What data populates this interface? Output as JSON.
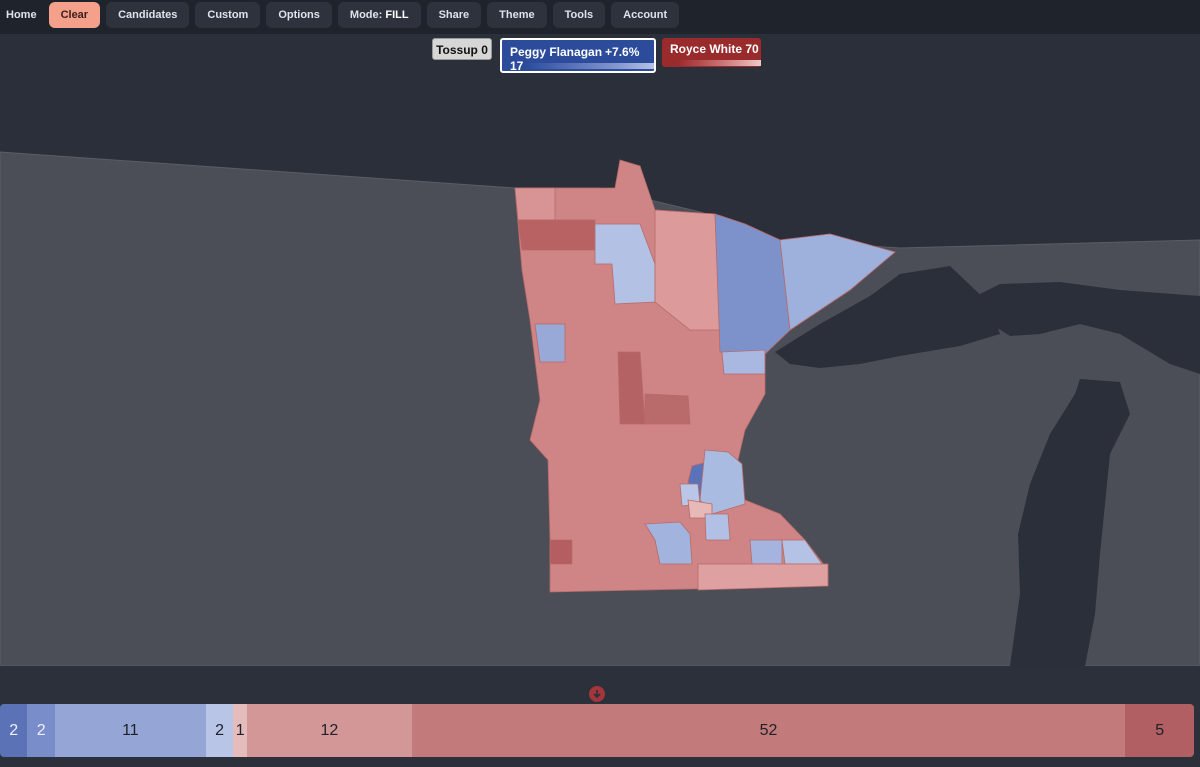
{
  "nav": [
    "Home",
    "Clear",
    "Candidates",
    "Custom",
    "Options",
    "Share",
    "Theme",
    "Tools",
    "Account"
  ],
  "mode": {
    "label": "Mode:",
    "value": "FILL"
  },
  "candidates": {
    "tossup": {
      "name": "Tossup",
      "count": 0
    },
    "flanagan": {
      "name": "Peggy Flanagan",
      "margin": "+7.6%",
      "count": 17
    },
    "white": {
      "name": "Royce White",
      "count": 70
    }
  },
  "seat_bar": {
    "segments": [
      {
        "value": 2,
        "color": "#5b72b6"
      },
      {
        "value": 2,
        "color": "#7a8dcb"
      },
      {
        "value": 11,
        "color": "#95a6d6"
      },
      {
        "value": 2,
        "color": "#b9c5e6"
      },
      {
        "value": 1,
        "color": "#e4bcbc"
      },
      {
        "value": 12,
        "color": "#d39797"
      },
      {
        "value": 52,
        "color": "#c27a7a"
      },
      {
        "value": 5,
        "color": "#b15f63"
      }
    ]
  }
}
